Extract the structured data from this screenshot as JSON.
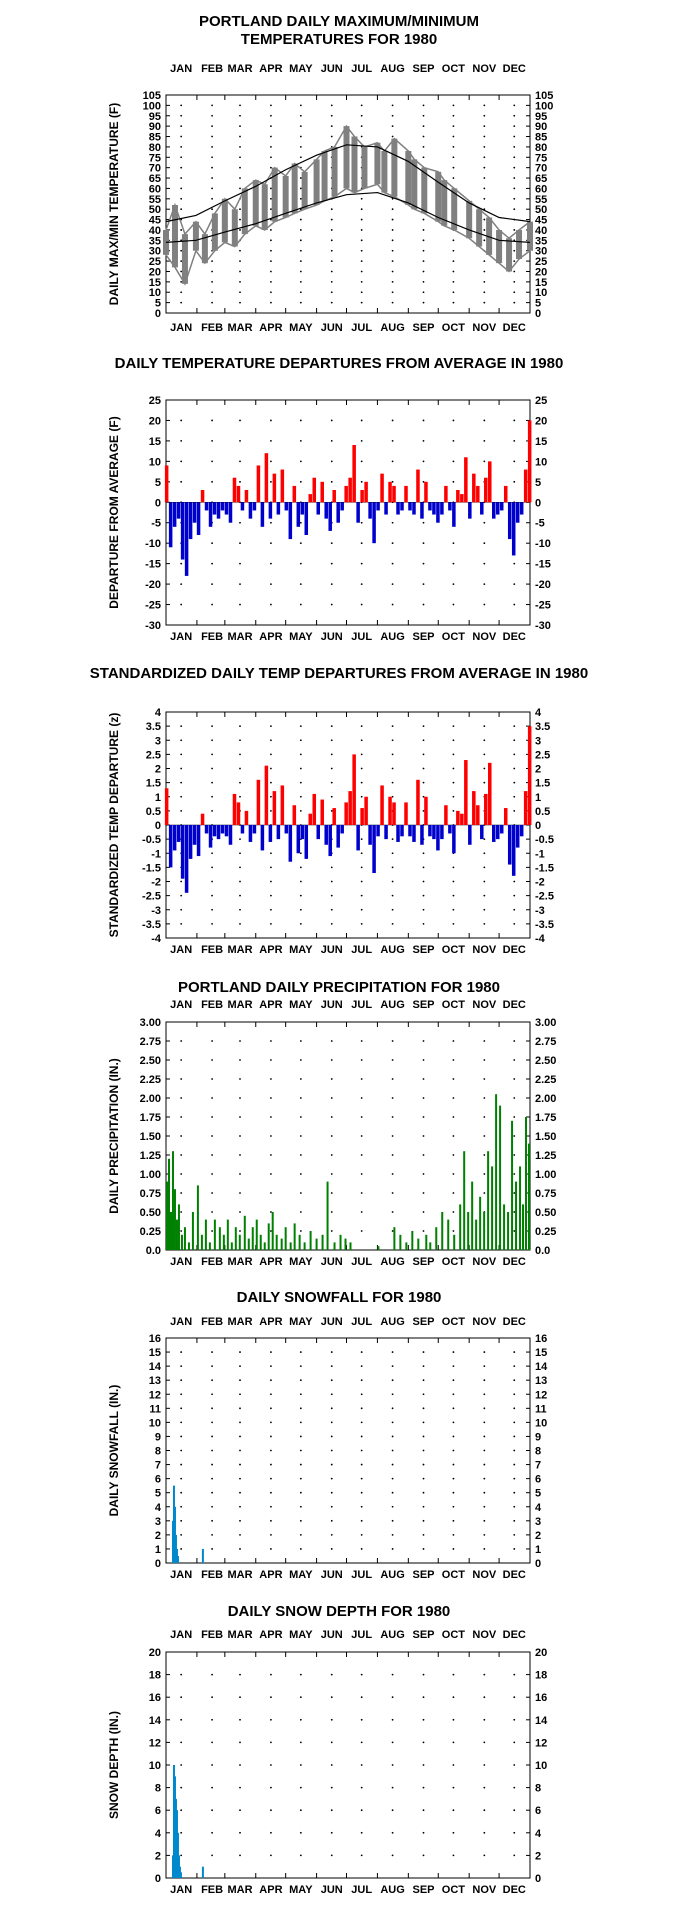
{
  "colors": {
    "maxmin_band": "#808080",
    "normal_line": "#000000",
    "warm": "#ff0000",
    "cold": "#0000cc",
    "precip": "#008000",
    "snow": "#0088cc",
    "grid_dots": "#000000"
  },
  "months": [
    "JAN",
    "FEB",
    "MAR",
    "APR",
    "MAY",
    "JUN",
    "JUL",
    "AUG",
    "SEP",
    "OCT",
    "NOV",
    "DEC"
  ],
  "chart_data": [
    {
      "id": "maxmin",
      "type": "line",
      "title": "PORTLAND DAILY MAXIMUM/MINIMUM",
      "title2": "TEMPERATURES FOR 1980",
      "ylabel": "DAILY MAX/MIN TEMPERATURE (F)",
      "ylim": [
        0,
        105
      ],
      "yticks": [
        0,
        5,
        10,
        15,
        20,
        25,
        30,
        35,
        40,
        45,
        50,
        55,
        60,
        65,
        70,
        75,
        80,
        85,
        90,
        95,
        100,
        105
      ],
      "x_axis": "day of year (JAN–DEC)",
      "grid": "dotted",
      "series": [
        {
          "kind": "band",
          "x": [
            1,
            10,
            20,
            31,
            40,
            50,
            60,
            70,
            80,
            91,
            100,
            110,
            121,
            130,
            140,
            152,
            160,
            170,
            182,
            190,
            200,
            213,
            220,
            230,
            244,
            250,
            260,
            274,
            280,
            290,
            305,
            315,
            325,
            335,
            345,
            355,
            366
          ],
          "max": [
            40,
            52,
            38,
            44,
            38,
            48,
            55,
            50,
            60,
            64,
            62,
            70,
            66,
            72,
            68,
            74,
            78,
            80,
            90,
            85,
            80,
            82,
            78,
            84,
            78,
            74,
            70,
            68,
            64,
            60,
            54,
            50,
            46,
            40,
            36,
            40,
            44
          ],
          "min": [
            28,
            22,
            14,
            30,
            24,
            30,
            34,
            32,
            38,
            42,
            40,
            44,
            46,
            48,
            50,
            52,
            54,
            56,
            60,
            58,
            60,
            62,
            58,
            56,
            52,
            50,
            48,
            44,
            42,
            40,
            36,
            32,
            28,
            24,
            20,
            26,
            30
          ]
        },
        {
          "name": "Normal high",
          "kind": "line",
          "x": [
            1,
            31,
            60,
            91,
            121,
            152,
            182,
            213,
            244,
            274,
            305,
            335,
            366
          ],
          "y": [
            44,
            47,
            54,
            61,
            69,
            76,
            81,
            80,
            73,
            63,
            53,
            46,
            44
          ]
        },
        {
          "name": "Normal low",
          "kind": "line",
          "x": [
            1,
            31,
            60,
            91,
            121,
            152,
            182,
            213,
            244,
            274,
            305,
            335,
            366
          ],
          "y": [
            34,
            35,
            39,
            43,
            48,
            53,
            57,
            58,
            53,
            46,
            40,
            35,
            34
          ]
        }
      ]
    },
    {
      "id": "departure",
      "type": "bar",
      "title": "DAILY TEMPERATURE DEPARTURES FROM AVERAGE IN 1980",
      "ylabel": "DEPARTURE FROM AVERAGE (F)",
      "ylim": [
        -30,
        25
      ],
      "yticks": [
        -30,
        -25,
        -20,
        -15,
        -10,
        -5,
        0,
        5,
        10,
        15,
        20,
        25
      ],
      "grid": "dotted",
      "x": [
        1,
        5,
        9,
        13,
        17,
        21,
        25,
        29,
        33,
        37,
        41,
        45,
        49,
        53,
        57,
        61,
        65,
        69,
        73,
        77,
        81,
        85,
        89,
        93,
        97,
        101,
        105,
        109,
        113,
        117,
        121,
        125,
        129,
        133,
        137,
        141,
        145,
        149,
        153,
        157,
        161,
        165,
        169,
        173,
        177,
        181,
        185,
        189,
        193,
        197,
        201,
        205,
        209,
        213,
        217,
        221,
        225,
        229,
        233,
        237,
        241,
        245,
        249,
        253,
        257,
        261,
        265,
        269,
        273,
        277,
        281,
        285,
        289,
        293,
        297,
        301,
        305,
        309,
        313,
        317,
        321,
        325,
        329,
        333,
        337,
        341,
        345,
        349,
        353,
        357,
        361,
        365
      ],
      "values": [
        9,
        -11,
        -6,
        -4,
        -14,
        -18,
        -9,
        -5,
        -8,
        3,
        -2,
        -6,
        -3,
        -4,
        -2,
        -3,
        -5,
        6,
        4,
        -2,
        3,
        -4,
        -2,
        9,
        -6,
        12,
        -4,
        7,
        -3,
        8,
        -2,
        -9,
        4,
        -6,
        -3,
        -8,
        2,
        6,
        -3,
        5,
        -4,
        -7,
        3,
        -5,
        -2,
        4,
        6,
        14,
        -5,
        3,
        5,
        -4,
        -10,
        -2,
        7,
        -3,
        5,
        4,
        -3,
        -2,
        4,
        -2,
        -3,
        8,
        -4,
        5,
        -2,
        -3,
        -5,
        -3,
        4,
        -2,
        -6,
        3,
        2,
        11,
        -4,
        7,
        4,
        -3,
        6,
        10,
        -4,
        -3,
        -2,
        4,
        -9,
        -13,
        -5,
        -3,
        8,
        20
      ]
    },
    {
      "id": "standardized",
      "type": "bar",
      "title": "STANDARDIZED DAILY TEMP DEPARTURES FROM AVERAGE IN 1980",
      "ylabel": "STANDARDIZED TEMP DEPARTURE (z)",
      "ylim": [
        -4.0,
        4.0
      ],
      "yticks": [
        -4.0,
        -3.5,
        -3.0,
        -2.5,
        -2.0,
        -1.5,
        -1.0,
        -0.5,
        0.0,
        0.5,
        1.0,
        1.5,
        2.0,
        2.5,
        3.0,
        3.5,
        4.0
      ],
      "grid": "dotted",
      "x": [
        1,
        5,
        9,
        13,
        17,
        21,
        25,
        29,
        33,
        37,
        41,
        45,
        49,
        53,
        57,
        61,
        65,
        69,
        73,
        77,
        81,
        85,
        89,
        93,
        97,
        101,
        105,
        109,
        113,
        117,
        121,
        125,
        129,
        133,
        137,
        141,
        145,
        149,
        153,
        157,
        161,
        165,
        169,
        173,
        177,
        181,
        185,
        189,
        193,
        197,
        201,
        205,
        209,
        213,
        217,
        221,
        225,
        229,
        233,
        237,
        241,
        245,
        249,
        253,
        257,
        261,
        265,
        269,
        273,
        277,
        281,
        285,
        289,
        293,
        297,
        301,
        305,
        309,
        313,
        317,
        321,
        325,
        329,
        333,
        337,
        341,
        345,
        349,
        353,
        357,
        361,
        365
      ],
      "values": [
        1.3,
        -1.5,
        -0.9,
        -0.6,
        -1.9,
        -2.4,
        -1.2,
        -0.7,
        -1.1,
        0.4,
        -0.3,
        -0.8,
        -0.4,
        -0.5,
        -0.3,
        -0.4,
        -0.7,
        1.1,
        0.8,
        -0.3,
        0.5,
        -0.6,
        -0.3,
        1.6,
        -0.9,
        2.1,
        -0.6,
        1.2,
        -0.5,
        1.4,
        -0.3,
        -1.3,
        0.7,
        -1.0,
        -0.5,
        -1.2,
        0.4,
        1.1,
        -0.5,
        0.9,
        -0.7,
        -1.1,
        0.6,
        -0.8,
        -0.3,
        0.8,
        1.2,
        2.5,
        -0.9,
        0.6,
        1.0,
        -0.7,
        -1.7,
        -0.4,
        1.4,
        -0.5,
        1.0,
        0.8,
        -0.6,
        -0.4,
        0.8,
        -0.4,
        -0.6,
        1.6,
        -0.7,
        1.0,
        -0.4,
        -0.5,
        -0.9,
        -0.5,
        0.7,
        -0.3,
        -1.0,
        0.5,
        0.4,
        2.3,
        -0.7,
        1.2,
        0.7,
        -0.5,
        1.1,
        2.2,
        -0.6,
        -0.5,
        -0.3,
        0.6,
        -1.4,
        -1.8,
        -0.8,
        -0.4,
        1.2,
        3.5
      ]
    },
    {
      "id": "precip",
      "type": "bar",
      "title": "PORTLAND DAILY PRECIPITATION FOR 1980",
      "ylabel": "DAILY PRECIPITATION (IN.)",
      "ylim": [
        0,
        3.0
      ],
      "yticks": [
        "0.0",
        "0.25",
        "0.50",
        "0.75",
        "1.00",
        "1.25",
        "1.50",
        "1.75",
        "2.00",
        "2.25",
        "2.50",
        "2.75",
        "3.00"
      ],
      "grid": "dotted",
      "x": [
        2,
        4,
        6,
        8,
        10,
        12,
        14,
        17,
        20,
        24,
        28,
        33,
        37,
        41,
        45,
        50,
        55,
        59,
        63,
        67,
        71,
        75,
        80,
        84,
        88,
        92,
        96,
        100,
        104,
        108,
        112,
        117,
        121,
        126,
        130,
        135,
        140,
        146,
        152,
        158,
        163,
        170,
        176,
        181,
        186,
        214,
        230,
        236,
        242,
        248,
        254,
        262,
        266,
        272,
        278,
        284,
        290,
        296,
        300,
        304,
        308,
        312,
        316,
        320,
        324,
        328,
        332,
        336,
        340,
        344,
        348,
        352,
        356,
        359,
        362,
        365
      ],
      "values": [
        0.9,
        1.2,
        0.5,
        1.3,
        0.8,
        0.4,
        0.6,
        0.2,
        0.3,
        0.1,
        0.5,
        0.85,
        0.2,
        0.4,
        0.1,
        0.4,
        0.3,
        0.2,
        0.4,
        0.1,
        0.3,
        0.2,
        0.45,
        0.15,
        0.3,
        0.4,
        0.2,
        0.1,
        0.35,
        0.5,
        0.2,
        0.15,
        0.3,
        0.1,
        0.35,
        0.2,
        0.1,
        0.25,
        0.15,
        0.2,
        0.9,
        0.1,
        0.2,
        0.15,
        0.1,
        0.05,
        0.3,
        0.2,
        0.1,
        0.25,
        0.15,
        0.2,
        0.1,
        0.3,
        0.5,
        0.4,
        0.2,
        0.6,
        1.3,
        0.5,
        0.9,
        0.4,
        0.7,
        0.5,
        1.3,
        1.1,
        2.05,
        1.9,
        0.6,
        0.5,
        1.7,
        0.9,
        1.1,
        0.6,
        1.75,
        1.4
      ]
    },
    {
      "id": "snowfall",
      "type": "bar",
      "title": "DAILY SNOWFALL FOR 1980",
      "ylabel": "DAILY SNOWFALL (IN.)",
      "ylim": [
        0,
        16
      ],
      "yticks": [
        0,
        1,
        2,
        3,
        4,
        5,
        6,
        7,
        8,
        9,
        10,
        11,
        12,
        13,
        14,
        15,
        16
      ],
      "grid": "dotted",
      "x": [
        8,
        9,
        10,
        11,
        12,
        13,
        38
      ],
      "values": [
        3.0,
        5.5,
        4.0,
        2.0,
        1.0,
        0.5,
        1.0
      ]
    },
    {
      "id": "snowdepth",
      "type": "area",
      "title": "DAILY SNOW DEPTH FOR 1980",
      "ylabel": "SNOW DEPTH (IN.)",
      "ylim": [
        0,
        20
      ],
      "yticks": [
        0,
        2,
        4,
        6,
        8,
        10,
        12,
        14,
        16,
        18,
        20
      ],
      "grid": "dotted",
      "x": [
        8,
        9,
        10,
        11,
        12,
        13,
        14,
        15,
        16,
        17,
        38
      ],
      "values": [
        2,
        10,
        9,
        7,
        6,
        4,
        2,
        1,
        0.5,
        0,
        1
      ]
    }
  ]
}
